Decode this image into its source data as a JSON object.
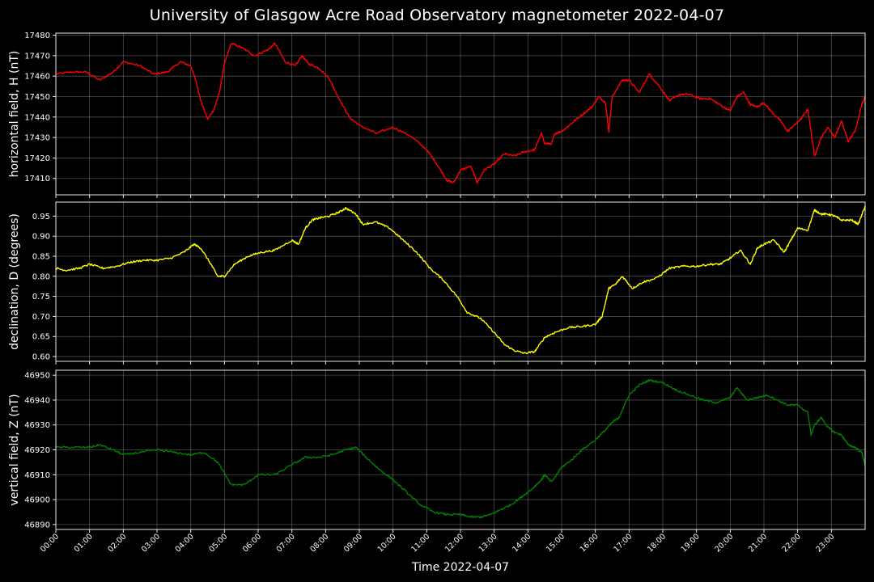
{
  "chart_data": {
    "type": "line",
    "title": "University of Glasgow Acre Road Observatory magnetometer 2022-04-07",
    "xlabel": "Time 2022-04-07",
    "x_tick_labels": [
      "00:00",
      "01:00",
      "02:00",
      "03:00",
      "04:00",
      "05:00",
      "06:00",
      "07:00",
      "08:00",
      "09:00",
      "10:00",
      "11:00",
      "12:00",
      "13:00",
      "14:00",
      "15:00",
      "16:00",
      "17:00",
      "18:00",
      "19:00",
      "20:00",
      "21:00",
      "22:00",
      "23:00"
    ],
    "x_range_hours": [
      0,
      24
    ],
    "grid": true,
    "panels": [
      {
        "ylabel": "horizontal field, H (nT)",
        "color": "#ff0000",
        "ylim": [
          17402,
          17481
        ],
        "yticks": [
          17410,
          17420,
          17430,
          17440,
          17450,
          17460,
          17470,
          17480
        ],
        "ytick_labels": [
          "17410",
          "17420",
          "17430",
          "17440",
          "17450",
          "17460",
          "17470",
          "17480"
        ],
        "x_hours": [
          0,
          0.5,
          0.9,
          1.3,
          1.7,
          2.0,
          2.5,
          2.9,
          3.3,
          3.7,
          4.0,
          4.15,
          4.3,
          4.5,
          4.7,
          4.85,
          5.0,
          5.2,
          5.5,
          5.9,
          6.3,
          6.5,
          6.8,
          7.1,
          7.3,
          7.5,
          7.8,
          8.1,
          8.4,
          8.7,
          9.0,
          9.5,
          10.0,
          10.5,
          11.0,
          11.3,
          11.6,
          11.8,
          12.0,
          12.3,
          12.5,
          12.7,
          13.0,
          13.3,
          13.6,
          13.9,
          14.2,
          14.4,
          14.5,
          14.7,
          14.8,
          15.0,
          15.3,
          15.6,
          15.9,
          16.1,
          16.3,
          16.4,
          16.5,
          16.8,
          17.0,
          17.3,
          17.6,
          17.9,
          18.2,
          18.5,
          18.8,
          19.1,
          19.4,
          19.7,
          20.0,
          20.2,
          20.4,
          20.6,
          20.8,
          21.0,
          21.2,
          21.5,
          21.7,
          21.9,
          22.1,
          22.3,
          22.5,
          22.7,
          22.9,
          23.1,
          23.3,
          23.5,
          23.7,
          23.9,
          24.0
        ],
        "values": [
          17461,
          17462,
          17462,
          17458,
          17462,
          17467,
          17465,
          17461,
          17462,
          17467,
          17465,
          17458,
          17448,
          17439,
          17444,
          17452,
          17466,
          17476,
          17474,
          17470,
          17473,
          17476,
          17467,
          17465,
          17470,
          17466,
          17464,
          17459,
          17449,
          17440,
          17436,
          17432,
          17435,
          17431,
          17424,
          17417,
          17409,
          17408,
          17414,
          17416,
          17408,
          17414,
          17417,
          17422,
          17421,
          17423,
          17424,
          17432,
          17427,
          17427,
          17432,
          17433,
          17437,
          17441,
          17445,
          17450,
          17447,
          17433,
          17450,
          17458,
          17458,
          17452,
          17461,
          17455,
          17448,
          17451,
          17451,
          17449,
          17449,
          17446,
          17443,
          17450,
          17452,
          17446,
          17445,
          17447,
          17443,
          17438,
          17433,
          17436,
          17439,
          17444,
          17421,
          17430,
          17435,
          17430,
          17438,
          17428,
          17433,
          17446,
          17450
        ]
      },
      {
        "ylabel": "declination, D (degrees)",
        "color": "#ffff00",
        "ylim": [
          0.588,
          0.985
        ],
        "yticks": [
          0.6,
          0.65,
          0.7,
          0.75,
          0.8,
          0.85,
          0.9,
          0.95
        ],
        "ytick_labels": [
          "0.60",
          "0.65",
          "0.70",
          "0.75",
          "0.80",
          "0.85",
          "0.90",
          "0.95"
        ],
        "x_hours": [
          0,
          0.3,
          0.7,
          1.0,
          1.4,
          1.8,
          2.2,
          2.6,
          3.0,
          3.4,
          3.8,
          4.1,
          4.3,
          4.6,
          4.8,
          5.0,
          5.3,
          5.7,
          6.1,
          6.5,
          7.0,
          7.2,
          7.4,
          7.6,
          7.8,
          8.1,
          8.4,
          8.6,
          8.9,
          9.1,
          9.5,
          9.9,
          10.3,
          10.7,
          11.1,
          11.5,
          11.9,
          12.2,
          12.6,
          13.0,
          13.3,
          13.6,
          13.9,
          14.2,
          14.5,
          14.8,
          15.2,
          15.6,
          16.0,
          16.2,
          16.4,
          16.6,
          16.8,
          17.1,
          17.4,
          17.8,
          18.2,
          18.6,
          19.0,
          19.4,
          19.7,
          20.0,
          20.3,
          20.6,
          20.8,
          21.0,
          21.3,
          21.6,
          21.8,
          22.0,
          22.3,
          22.5,
          22.7,
          22.9,
          23.1,
          23.3,
          23.6,
          23.8,
          24.0
        ],
        "values": [
          0.82,
          0.815,
          0.82,
          0.83,
          0.82,
          0.825,
          0.835,
          0.84,
          0.84,
          0.845,
          0.86,
          0.88,
          0.87,
          0.83,
          0.8,
          0.8,
          0.83,
          0.85,
          0.86,
          0.865,
          0.89,
          0.88,
          0.92,
          0.94,
          0.945,
          0.95,
          0.96,
          0.97,
          0.955,
          0.93,
          0.935,
          0.92,
          0.89,
          0.86,
          0.82,
          0.79,
          0.75,
          0.71,
          0.695,
          0.66,
          0.63,
          0.615,
          0.608,
          0.612,
          0.648,
          0.66,
          0.672,
          0.675,
          0.68,
          0.7,
          0.77,
          0.78,
          0.8,
          0.77,
          0.785,
          0.795,
          0.82,
          0.825,
          0.825,
          0.83,
          0.83,
          0.845,
          0.865,
          0.83,
          0.87,
          0.88,
          0.89,
          0.86,
          0.89,
          0.92,
          0.915,
          0.965,
          0.955,
          0.955,
          0.95,
          0.94,
          0.94,
          0.93,
          0.975
        ]
      },
      {
        "ylabel": "vertical field, Z (nT)",
        "color": "#008000",
        "ylim": [
          46888,
          46952
        ],
        "yticks": [
          46890,
          46900,
          46910,
          46920,
          46930,
          46940,
          46950
        ],
        "ytick_labels": [
          "46890",
          "46900",
          "46910",
          "46920",
          "46930",
          "46940",
          "46950"
        ],
        "x_hours": [
          0,
          0.5,
          1.0,
          1.3,
          1.7,
          2.0,
          2.5,
          3.0,
          3.5,
          4.0,
          4.4,
          4.8,
          5.2,
          5.6,
          6.0,
          6.5,
          7.0,
          7.4,
          7.8,
          8.2,
          8.6,
          8.9,
          9.2,
          9.6,
          10.0,
          10.4,
          10.8,
          11.2,
          11.6,
          12.0,
          12.3,
          12.6,
          12.9,
          13.2,
          13.5,
          13.8,
          14.1,
          14.4,
          14.5,
          14.7,
          15.0,
          15.3,
          15.6,
          16.0,
          16.3,
          16.5,
          16.7,
          17.0,
          17.3,
          17.6,
          18.0,
          18.4,
          18.8,
          19.2,
          19.6,
          20.0,
          20.2,
          20.5,
          20.8,
          21.1,
          21.4,
          21.7,
          22.0,
          22.3,
          22.4,
          22.5,
          22.7,
          22.9,
          23.1,
          23.3,
          23.5,
          23.7,
          23.9,
          24.0
        ],
        "values": [
          46921,
          46921,
          46921,
          46922,
          46920,
          46918,
          46919,
          46920,
          46919,
          46918,
          46919,
          46915,
          46906,
          46906,
          46910,
          46910,
          46914,
          46917,
          46917,
          46918,
          46920,
          46921,
          46917,
          46912,
          46908,
          46903,
          46898,
          46895,
          46894,
          46894,
          46893,
          46893,
          46894,
          46896,
          46898,
          46901,
          46904,
          46908,
          46910,
          46907,
          46913,
          46916,
          46920,
          46924,
          46928,
          46931,
          46933,
          46942,
          46946,
          46948,
          46947,
          46944,
          46942,
          46940,
          46939,
          46941,
          46945,
          46940,
          46941,
          46942,
          46940,
          46938,
          46938,
          46935,
          46926,
          46930,
          46933,
          46929,
          46927,
          46926,
          46922,
          46921,
          46919,
          46914
        ]
      }
    ]
  }
}
